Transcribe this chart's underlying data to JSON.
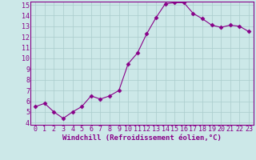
{
  "x": [
    0,
    1,
    2,
    3,
    4,
    5,
    6,
    7,
    8,
    9,
    10,
    11,
    12,
    13,
    14,
    15,
    16,
    17,
    18,
    19,
    20,
    21,
    22,
    23
  ],
  "y": [
    5.5,
    5.8,
    5.0,
    4.4,
    5.0,
    5.5,
    6.5,
    6.2,
    6.5,
    7.0,
    9.5,
    10.5,
    12.3,
    13.8,
    15.1,
    15.2,
    15.2,
    14.2,
    13.7,
    13.1,
    12.9,
    13.1,
    13.0,
    12.5
  ],
  "line_color": "#880088",
  "marker": "D",
  "marker_size": 2.5,
  "bg_color": "#cce8e8",
  "grid_color": "#aacccc",
  "xlabel": "Windchill (Refroidissement éolien,°C)",
  "ylim": [
    4,
    15
  ],
  "xlim": [
    -0.5,
    23.5
  ],
  "yticks": [
    4,
    5,
    6,
    7,
    8,
    9,
    10,
    11,
    12,
    13,
    14,
    15
  ],
  "xticks": [
    0,
    1,
    2,
    3,
    4,
    5,
    6,
    7,
    8,
    9,
    10,
    11,
    12,
    13,
    14,
    15,
    16,
    17,
    18,
    19,
    20,
    21,
    22,
    23
  ],
  "xlabel_fontsize": 6.5,
  "tick_fontsize": 6,
  "spine_color": "#880088",
  "axis_bg": "#cce8e8"
}
